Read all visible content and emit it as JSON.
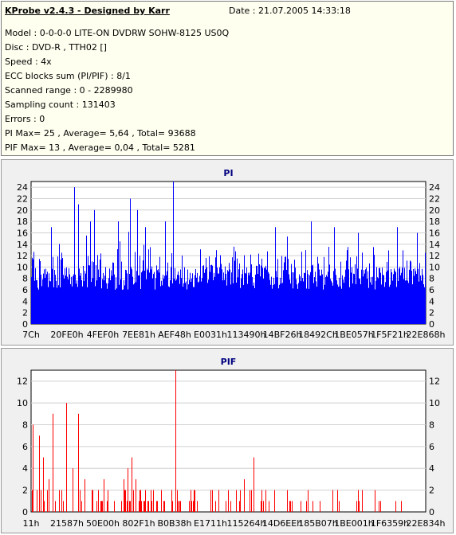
{
  "info": {
    "title": "KProbe v2.4.3 - Designed by Karr",
    "date": "Date : 21.07.2005 14:33:18",
    "lines": [
      "Model : 0-0-0-0 LITE-ON DVDRW SOHW-8125  US0Q",
      "Disc : DVD-R , TTH02 []",
      "Speed : 4x",
      "ECC blocks sum (PI/PIF) : 8/1",
      "Scanned range : 0 - 2289980",
      "Sampling count : 131403",
      "Errors : 0",
      "PI Max= 25 , Average= 5,64 , Total= 93688",
      "PIF Max= 13 , Average= 0,04 , Total= 5281"
    ]
  },
  "chart_data": [
    {
      "type": "bar",
      "title": "PI",
      "color": "#0000ff",
      "ylim": [
        0,
        25
      ],
      "yticks": [
        0,
        2,
        4,
        6,
        8,
        10,
        12,
        14,
        16,
        18,
        20,
        22,
        24
      ],
      "xtick_labels": [
        "7Ch",
        "20FE0h",
        "4FEF0h",
        "7EE81h",
        "AEF48h",
        "E0031h",
        "113490h",
        "14BF26h",
        "18492Ch",
        "1BE057h",
        "1F5F21h",
        "22E868h"
      ],
      "stats": {
        "max": 25,
        "average": 5.64,
        "total": 93688
      },
      "peaks": [
        {
          "pos": 0.11,
          "value": 24
        },
        {
          "pos": 0.12,
          "value": 21
        },
        {
          "pos": 0.16,
          "value": 20
        },
        {
          "pos": 0.15,
          "value": 18
        },
        {
          "pos": 0.25,
          "value": 22
        },
        {
          "pos": 0.25,
          "value": 21
        },
        {
          "pos": 0.27,
          "value": 20
        },
        {
          "pos": 0.22,
          "value": 18
        },
        {
          "pos": 0.29,
          "value": 17
        },
        {
          "pos": 0.36,
          "value": 25
        },
        {
          "pos": 0.36,
          "value": 21
        },
        {
          "pos": 0.34,
          "value": 18
        },
        {
          "pos": 0.05,
          "value": 17
        },
        {
          "pos": 0.62,
          "value": 17
        },
        {
          "pos": 0.71,
          "value": 18
        },
        {
          "pos": 0.77,
          "value": 17
        },
        {
          "pos": 0.83,
          "value": 16
        },
        {
          "pos": 0.93,
          "value": 17
        },
        {
          "pos": 0.98,
          "value": 16
        }
      ]
    },
    {
      "type": "bar",
      "title": "PIF",
      "color": "#ff0000",
      "ylim": [
        0,
        13
      ],
      "yticks": [
        0,
        2,
        4,
        6,
        8,
        10,
        12
      ],
      "xtick_labels": [
        "11h",
        "21587h",
        "50E00h",
        "802F1h",
        "B0B38h",
        "E1711h",
        "115264h",
        "14D6EEh",
        "185B07h",
        "1BE001h",
        "1F6359h",
        "22E834h"
      ],
      "stats": {
        "max": 13,
        "average": 0.04,
        "total": 5281
      },
      "peaks": [
        {
          "pos": 0.005,
          "value": 8
        },
        {
          "pos": 0.02,
          "value": 7
        },
        {
          "pos": 0.03,
          "value": 5
        },
        {
          "pos": 0.045,
          "value": 3
        },
        {
          "pos": 0.055,
          "value": 9
        },
        {
          "pos": 0.07,
          "value": 2
        },
        {
          "pos": 0.09,
          "value": 10
        },
        {
          "pos": 0.105,
          "value": 4
        },
        {
          "pos": 0.12,
          "value": 9
        },
        {
          "pos": 0.135,
          "value": 3
        },
        {
          "pos": 0.155,
          "value": 2
        },
        {
          "pos": 0.17,
          "value": 2
        },
        {
          "pos": 0.185,
          "value": 3
        },
        {
          "pos": 0.195,
          "value": 2
        },
        {
          "pos": 0.235,
          "value": 3
        },
        {
          "pos": 0.245,
          "value": 4
        },
        {
          "pos": 0.255,
          "value": 5
        },
        {
          "pos": 0.265,
          "value": 3
        },
        {
          "pos": 0.275,
          "value": 2
        },
        {
          "pos": 0.31,
          "value": 2
        },
        {
          "pos": 0.33,
          "value": 2
        },
        {
          "pos": 0.367,
          "value": 13
        },
        {
          "pos": 0.4,
          "value": 1
        },
        {
          "pos": 0.46,
          "value": 2
        },
        {
          "pos": 0.52,
          "value": 2
        },
        {
          "pos": 0.54,
          "value": 3
        },
        {
          "pos": 0.555,
          "value": 2
        },
        {
          "pos": 0.565,
          "value": 5
        },
        {
          "pos": 0.585,
          "value": 2
        }
      ]
    }
  ]
}
